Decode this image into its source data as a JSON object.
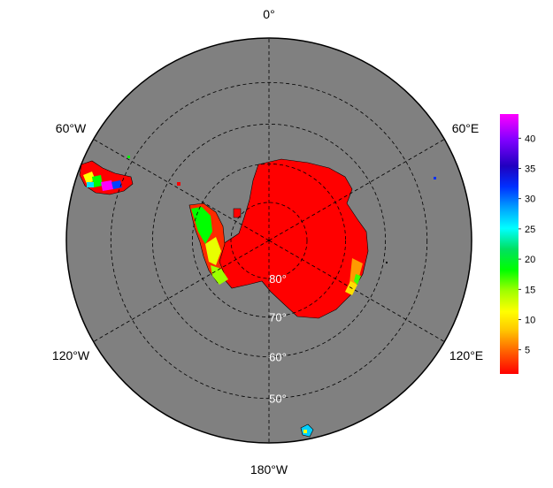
{
  "map": {
    "projection": "south-polar-stereographic",
    "ocean_color": "#808080",
    "land_color": "#ff0000",
    "coast_color": "#000000",
    "grid_color": "#000000",
    "lon_labels": [
      "0°",
      "60°E",
      "120°E",
      "180°W",
      "120°W",
      "60°W"
    ],
    "lat_labels": [
      "80°",
      "70°",
      "60°",
      "50°"
    ],
    "lat_values": [
      -80,
      -70,
      -60,
      -50
    ]
  },
  "colorbar": {
    "ticks": [
      "5",
      "10",
      "15",
      "20",
      "25",
      "30",
      "35",
      "40"
    ],
    "tick_values": [
      5,
      10,
      15,
      20,
      25,
      30,
      35,
      40
    ],
    "range": [
      1,
      44
    ],
    "colors": [
      "#ff0000",
      "#ff6a00",
      "#ffd700",
      "#ffff00",
      "#a0ff00",
      "#00ff00",
      "#00e070",
      "#00ffff",
      "#00a0ff",
      "#0030ff",
      "#2000d0",
      "#8000ff",
      "#ff00ff"
    ]
  }
}
